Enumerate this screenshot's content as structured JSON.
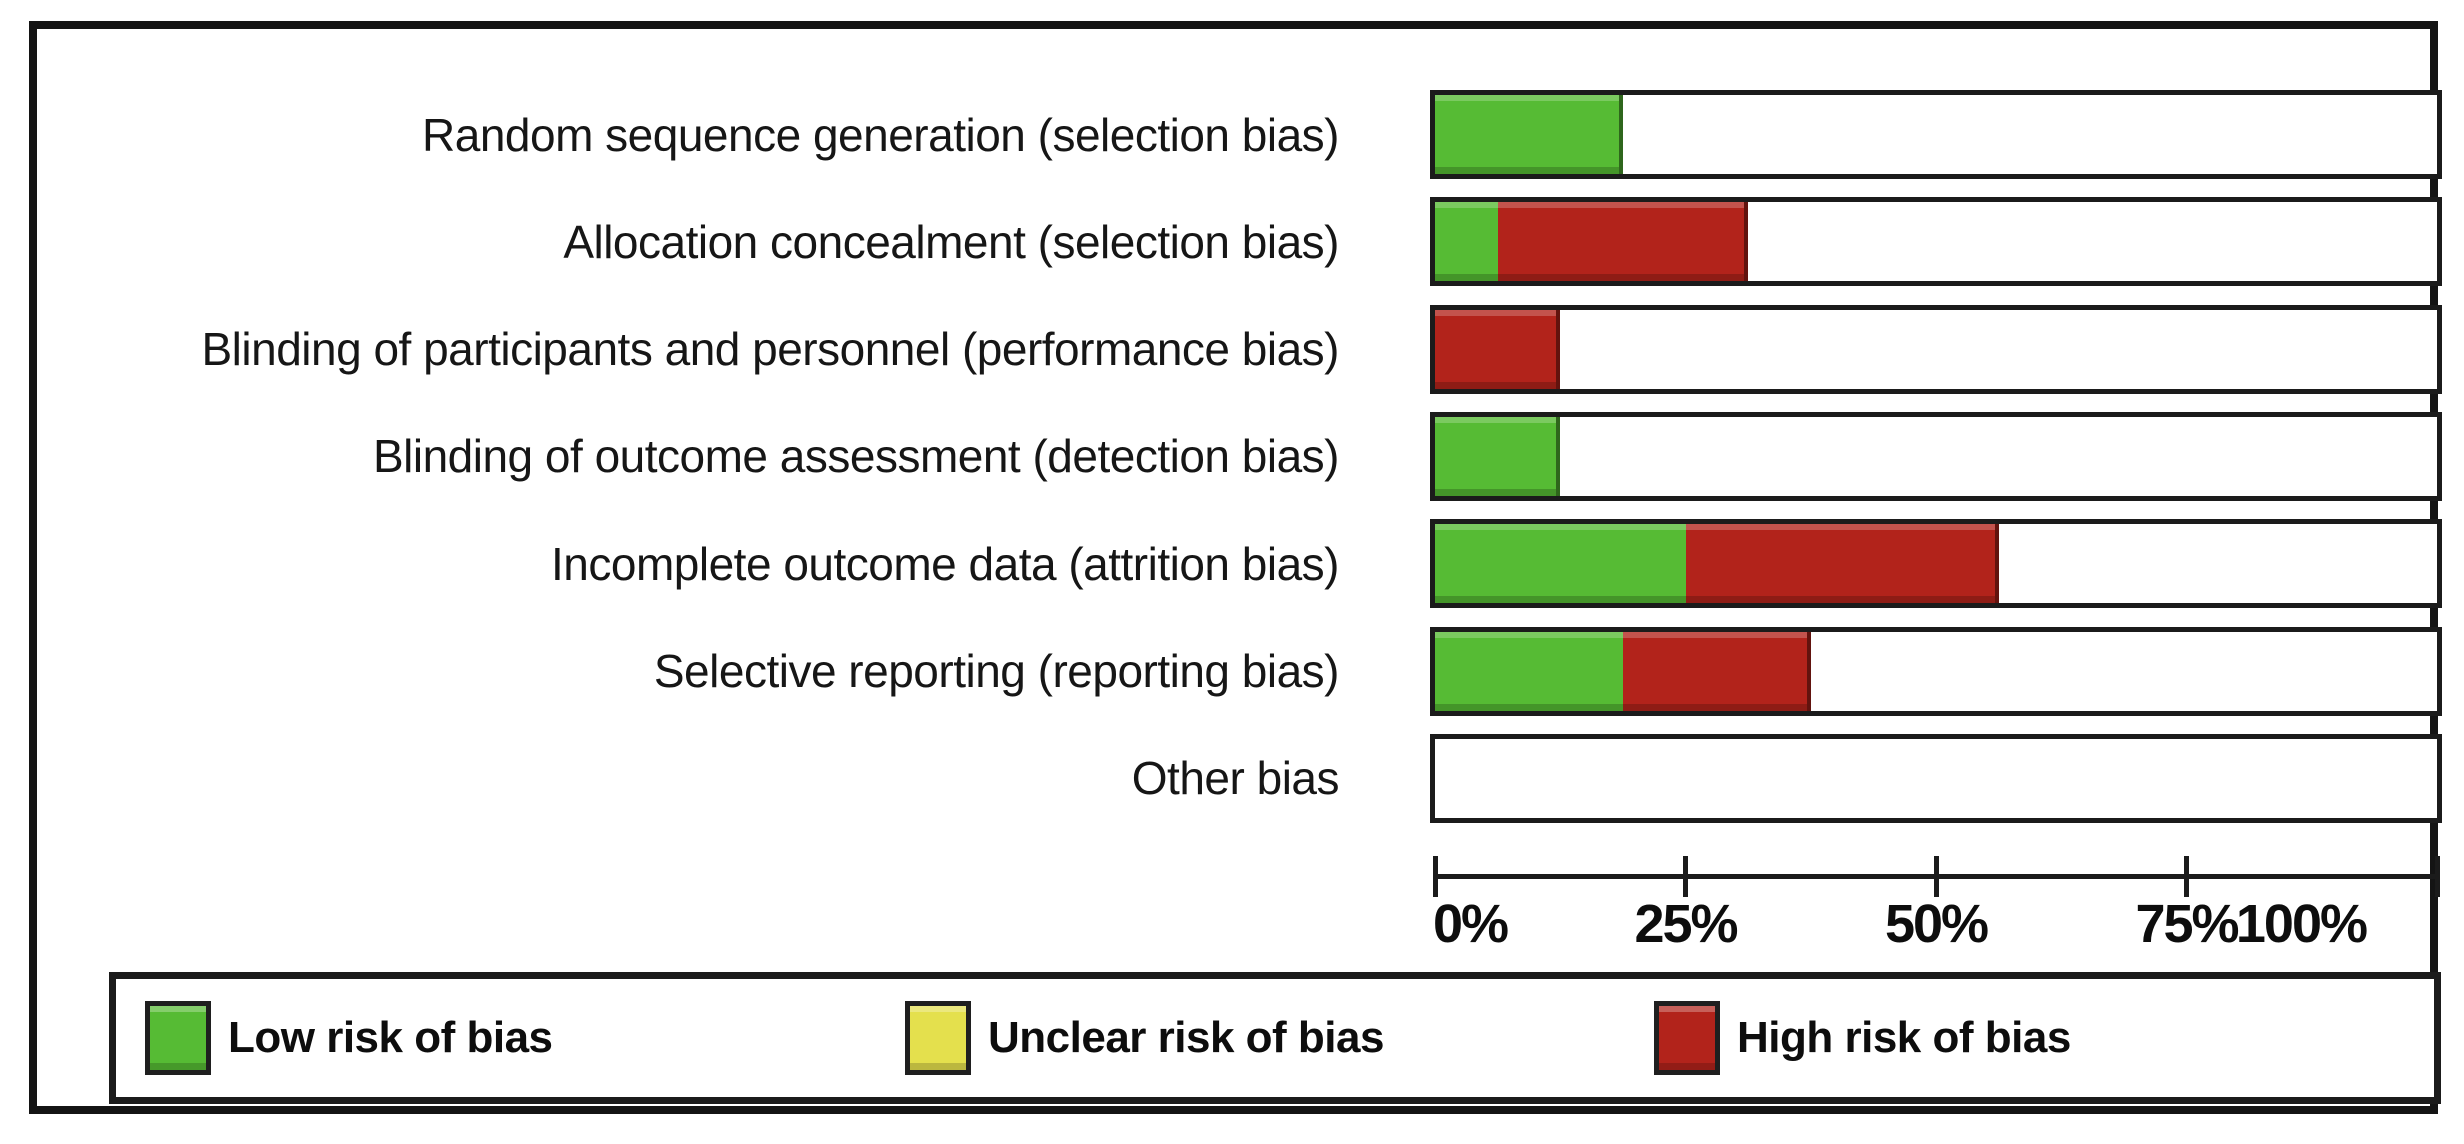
{
  "chart_data": {
    "type": "bar",
    "variant": "stacked-horizontal",
    "title": "",
    "categories": [
      "Random sequence generation (selection bias)",
      "Allocation concealment (selection bias)",
      "Blinding of participants and personnel (performance bias)",
      "Blinding of outcome assessment (detection bias)",
      "Incomplete outcome data (attrition bias)",
      "Selective reporting (reporting bias)",
      "Other bias"
    ],
    "series": [
      {
        "name": "Low risk of bias",
        "color": "#56bb34",
        "values": [
          18.75,
          6.25,
          0,
          12.5,
          25,
          18.75,
          0
        ]
      },
      {
        "name": "Unclear risk of bias",
        "color": "#e4e04d",
        "values": [
          0,
          0,
          0,
          0,
          0,
          0,
          0
        ]
      },
      {
        "name": "High risk of bias",
        "color": "#b2231b",
        "values": [
          0,
          25,
          12.5,
          0,
          31.25,
          18.75,
          0
        ]
      }
    ],
    "xlim": [
      0,
      100
    ],
    "x_ticks": [
      {
        "value": 0,
        "label": "0%"
      },
      {
        "value": 25,
        "label": "25%"
      },
      {
        "value": 50,
        "label": "50%"
      },
      {
        "value": 75,
        "label": "75%"
      },
      {
        "value": 100,
        "label": "100%"
      }
    ],
    "grid": false,
    "legend_position": "bottom",
    "empty_fill": "#ffffff"
  },
  "legend": {
    "items": [
      {
        "label": "Low risk of bias",
        "color": "#56bb34"
      },
      {
        "label": "Unclear risk of bias",
        "color": "#e4e04d"
      },
      {
        "label": "High risk of bias",
        "color": "#b2231b"
      }
    ]
  }
}
